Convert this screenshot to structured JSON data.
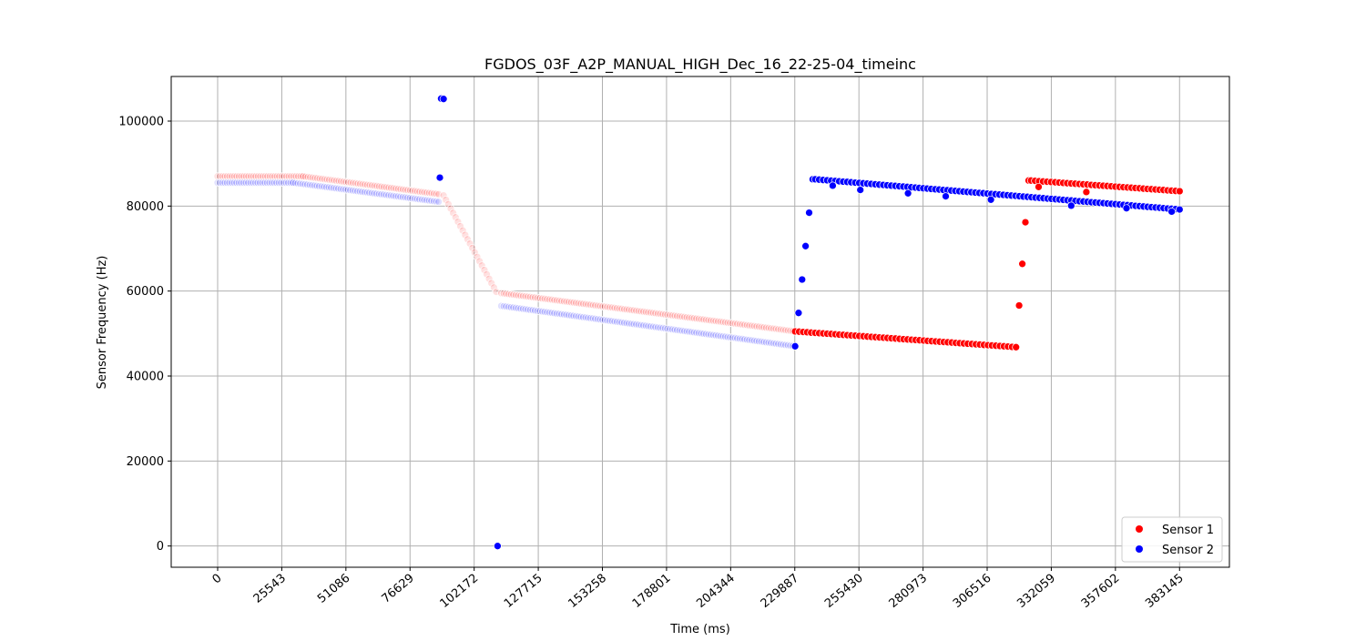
{
  "chart_data": {
    "type": "scatter",
    "title": "FGDOS_03F_A2P_MANUAL_HIGH_Dec_16_22-25-04_timeinc",
    "xlabel": "Time (ms)",
    "ylabel": "Sensor Frequency (Hz)",
    "xlim": [
      -18500,
      403000
    ],
    "ylim": [
      -5000,
      110500
    ],
    "x_ticks": [
      0,
      25543,
      51086,
      76629,
      102172,
      127715,
      153258,
      178801,
      204344,
      229887,
      255430,
      280973,
      306516,
      332059,
      357602,
      383145
    ],
    "y_ticks": [
      0,
      20000,
      40000,
      60000,
      80000,
      100000
    ],
    "grid": true,
    "legend_position": "lower-right",
    "series": [
      {
        "name": "Sensor 1",
        "color": "#ff0000",
        "segments": [
          {
            "style": "faint",
            "x": [
              0,
              34000,
              88000
            ],
            "y": [
              87000,
              87000,
              82800
            ]
          },
          {
            "style": "faint",
            "x": [
              90000,
              111000
            ],
            "y": [
              82500,
              59800
            ]
          },
          {
            "style": "faint",
            "x": [
              113000,
              230000
            ],
            "y": [
              59500,
              50500
            ]
          },
          {
            "style": "solid",
            "x": [
              230000,
              318000
            ],
            "y": [
              50500,
              46800
            ]
          },
          {
            "style": "solid",
            "x": [
              318000,
              323000
            ],
            "y": [
              46800,
              86000
            ]
          },
          {
            "style": "solid",
            "x": [
              324000,
              383145
            ],
            "y": [
              86000,
              83500
            ]
          }
        ],
        "outliers": [
          {
            "x": 327000,
            "y": 84500
          },
          {
            "x": 346000,
            "y": 83300
          }
        ]
      },
      {
        "name": "Sensor 2",
        "color": "#0000ff",
        "segments": [
          {
            "style": "faint",
            "x": [
              0,
              30000,
              88000
            ],
            "y": [
              85500,
              85500,
              81000
            ]
          },
          {
            "style": "faint",
            "x": [
              113000,
              230000
            ],
            "y": [
              56500,
              47000
            ]
          },
          {
            "style": "solid",
            "x": [
              230000,
              237000
            ],
            "y": [
              47000,
              86300
            ]
          },
          {
            "style": "solid",
            "x": [
              238000,
              383145
            ],
            "y": [
              86300,
              79200
            ]
          }
        ],
        "outliers": [
          {
            "x": 89000,
            "y": 105300
          },
          {
            "x": 90000,
            "y": 105200
          },
          {
            "x": 88500,
            "y": 86700
          },
          {
            "x": 111500,
            "y": 0
          },
          {
            "x": 245000,
            "y": 84800
          },
          {
            "x": 256000,
            "y": 83800
          },
          {
            "x": 275000,
            "y": 83000
          },
          {
            "x": 290000,
            "y": 82300
          },
          {
            "x": 308000,
            "y": 81500
          },
          {
            "x": 340000,
            "y": 80100
          },
          {
            "x": 362000,
            "y": 79500
          },
          {
            "x": 380000,
            "y": 78700
          }
        ]
      }
    ]
  }
}
